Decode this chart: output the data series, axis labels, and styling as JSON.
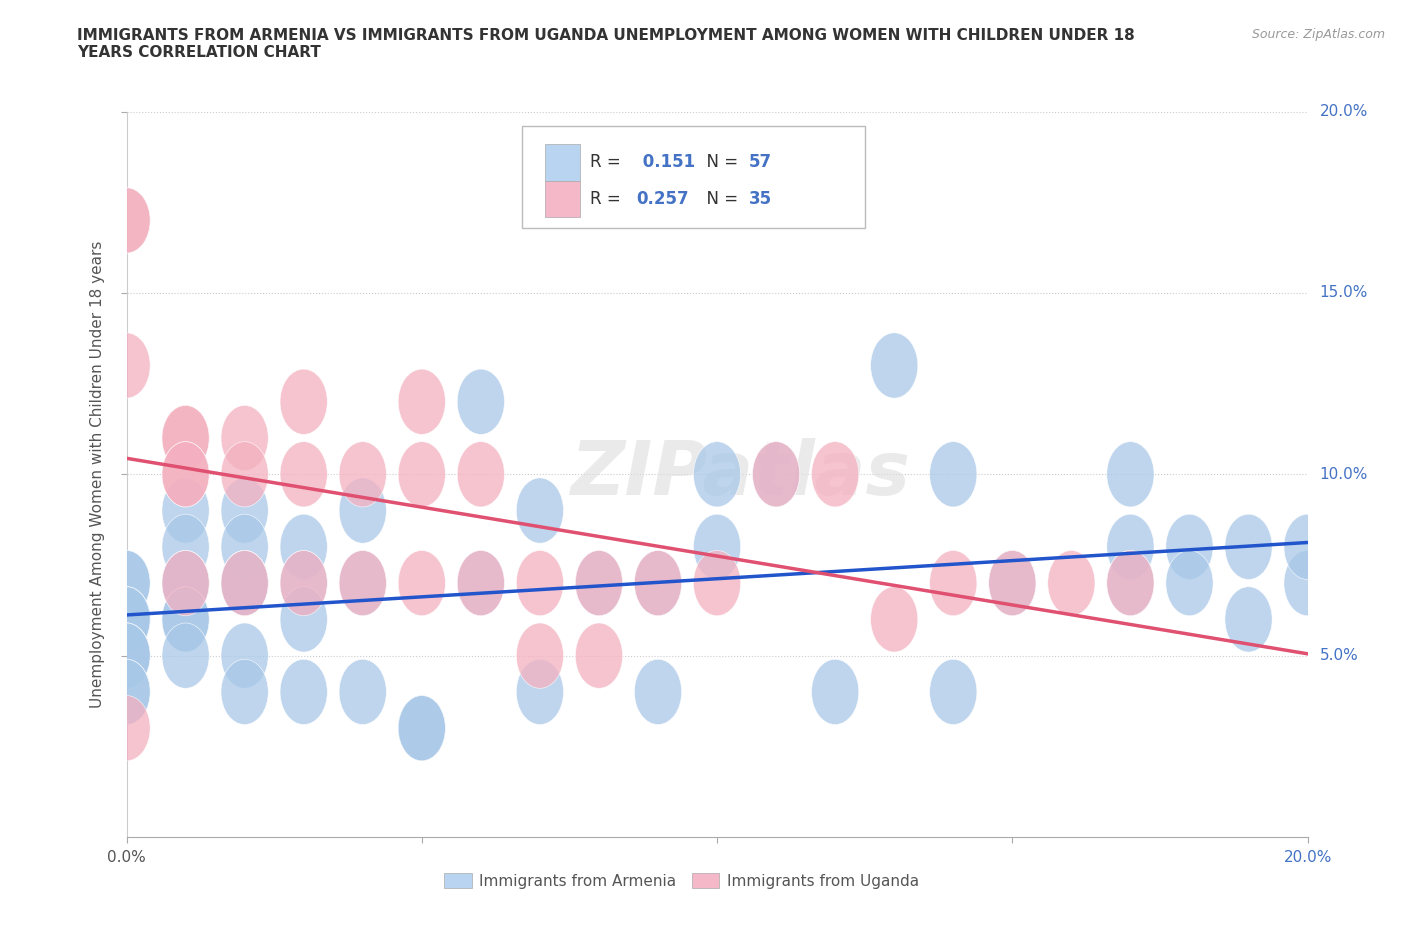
{
  "title": "IMMIGRANTS FROM ARMENIA VS IMMIGRANTS FROM UGANDA UNEMPLOYMENT AMONG WOMEN WITH CHILDREN UNDER 18\nYEARS CORRELATION CHART",
  "source": "Source: ZipAtlas.com",
  "ylabel": "Unemployment Among Women with Children Under 18 years",
  "xlim": [
    0.0,
    0.2
  ],
  "ylim": [
    0.0,
    0.2
  ],
  "xticks": [
    0.0,
    0.05,
    0.1,
    0.15,
    0.2
  ],
  "yticks": [
    0.05,
    0.1,
    0.15,
    0.2
  ],
  "armenia_color": "#a8c8e8",
  "uganda_color": "#f4b0c0",
  "armenia_line_color": "#2255cc",
  "uganda_line_color": "#e05070",
  "legend_box_color_armenia": "#b8d4f0",
  "legend_box_color_uganda": "#f4b8c8",
  "R_armenia": 0.151,
  "N_armenia": 57,
  "R_uganda": 0.257,
  "N_uganda": 35,
  "watermark": "ZIPatlas",
  "armenia_x": [
    0.0,
    0.0,
    0.0,
    0.0,
    0.0,
    0.0,
    0.0,
    0.0,
    0.0,
    0.0,
    0.01,
    0.01,
    0.01,
    0.01,
    0.01,
    0.01,
    0.01,
    0.02,
    0.02,
    0.02,
    0.02,
    0.02,
    0.02,
    0.02,
    0.03,
    0.03,
    0.03,
    0.03,
    0.04,
    0.04,
    0.04,
    0.05,
    0.05,
    0.06,
    0.06,
    0.07,
    0.07,
    0.08,
    0.09,
    0.09,
    0.1,
    0.1,
    0.11,
    0.12,
    0.13,
    0.14,
    0.14,
    0.15,
    0.17,
    0.17,
    0.17,
    0.18,
    0.18,
    0.19,
    0.19,
    0.2,
    0.2
  ],
  "armenia_y": [
    0.07,
    0.07,
    0.06,
    0.06,
    0.06,
    0.05,
    0.05,
    0.05,
    0.04,
    0.04,
    0.09,
    0.08,
    0.07,
    0.07,
    0.06,
    0.06,
    0.05,
    0.09,
    0.08,
    0.07,
    0.07,
    0.07,
    0.05,
    0.04,
    0.08,
    0.07,
    0.06,
    0.04,
    0.09,
    0.07,
    0.04,
    0.03,
    0.03,
    0.12,
    0.07,
    0.09,
    0.04,
    0.07,
    0.07,
    0.04,
    0.1,
    0.08,
    0.1,
    0.04,
    0.13,
    0.1,
    0.04,
    0.07,
    0.1,
    0.08,
    0.07,
    0.08,
    0.07,
    0.08,
    0.06,
    0.07,
    0.08
  ],
  "uganda_x": [
    0.0,
    0.0,
    0.0,
    0.0,
    0.01,
    0.01,
    0.01,
    0.01,
    0.01,
    0.02,
    0.02,
    0.02,
    0.03,
    0.03,
    0.03,
    0.04,
    0.04,
    0.05,
    0.05,
    0.05,
    0.06,
    0.06,
    0.07,
    0.07,
    0.08,
    0.08,
    0.09,
    0.1,
    0.11,
    0.12,
    0.13,
    0.14,
    0.15,
    0.16,
    0.17
  ],
  "uganda_y": [
    0.17,
    0.17,
    0.13,
    0.03,
    0.11,
    0.11,
    0.1,
    0.1,
    0.07,
    0.11,
    0.1,
    0.07,
    0.12,
    0.1,
    0.07,
    0.1,
    0.07,
    0.12,
    0.1,
    0.07,
    0.1,
    0.07,
    0.07,
    0.05,
    0.07,
    0.05,
    0.07,
    0.07,
    0.1,
    0.1,
    0.06,
    0.07,
    0.07,
    0.07,
    0.07
  ]
}
